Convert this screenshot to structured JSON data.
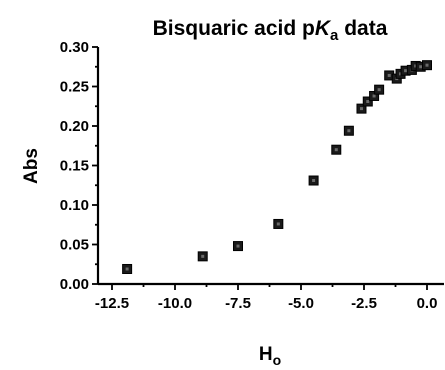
{
  "chart_data": {
    "type": "scatter",
    "title": "Bisquaric acid pKa data",
    "title_parts": {
      "pre": "Bisquaric acid p",
      "italic": "K",
      "sub": "a",
      "post": " data"
    },
    "xlabel": "H",
    "xlabel_sub": "o",
    "ylabel": "Abs",
    "xlim": [
      -12.5,
      0.5
    ],
    "ylim": [
      0.0,
      0.3
    ],
    "xticks": [
      -12.5,
      -10.0,
      -7.5,
      -5.0,
      -2.5,
      0.0
    ],
    "xtick_labels": [
      "-12.5",
      "-10.0",
      "-7.5",
      "-5.0",
      "-2.5",
      "0.0"
    ],
    "yticks": [
      0.0,
      0.05,
      0.1,
      0.15,
      0.2,
      0.25,
      0.3
    ],
    "ytick_labels": [
      "0.00",
      "0.05",
      "0.10",
      "0.15",
      "0.20",
      "0.25",
      "0.30"
    ],
    "grid": false,
    "marker": "square",
    "series": [
      {
        "points": [
          {
            "x": -11.9,
            "y": 0.019
          },
          {
            "x": -8.9,
            "y": 0.035
          },
          {
            "x": -7.5,
            "y": 0.048
          },
          {
            "x": -5.9,
            "y": 0.076
          },
          {
            "x": -4.5,
            "y": 0.131
          },
          {
            "x": -3.6,
            "y": 0.17
          },
          {
            "x": -3.1,
            "y": 0.194
          },
          {
            "x": -2.6,
            "y": 0.222
          },
          {
            "x": -2.35,
            "y": 0.231
          },
          {
            "x": -2.1,
            "y": 0.238
          },
          {
            "x": -1.9,
            "y": 0.246
          },
          {
            "x": -1.5,
            "y": 0.264
          },
          {
            "x": -1.2,
            "y": 0.26
          },
          {
            "x": -1.05,
            "y": 0.266
          },
          {
            "x": -0.85,
            "y": 0.27
          },
          {
            "x": -0.6,
            "y": 0.271
          },
          {
            "x": -0.45,
            "y": 0.276
          },
          {
            "x": -0.25,
            "y": 0.275
          },
          {
            "x": 0.0,
            "y": 0.277
          }
        ]
      }
    ]
  }
}
